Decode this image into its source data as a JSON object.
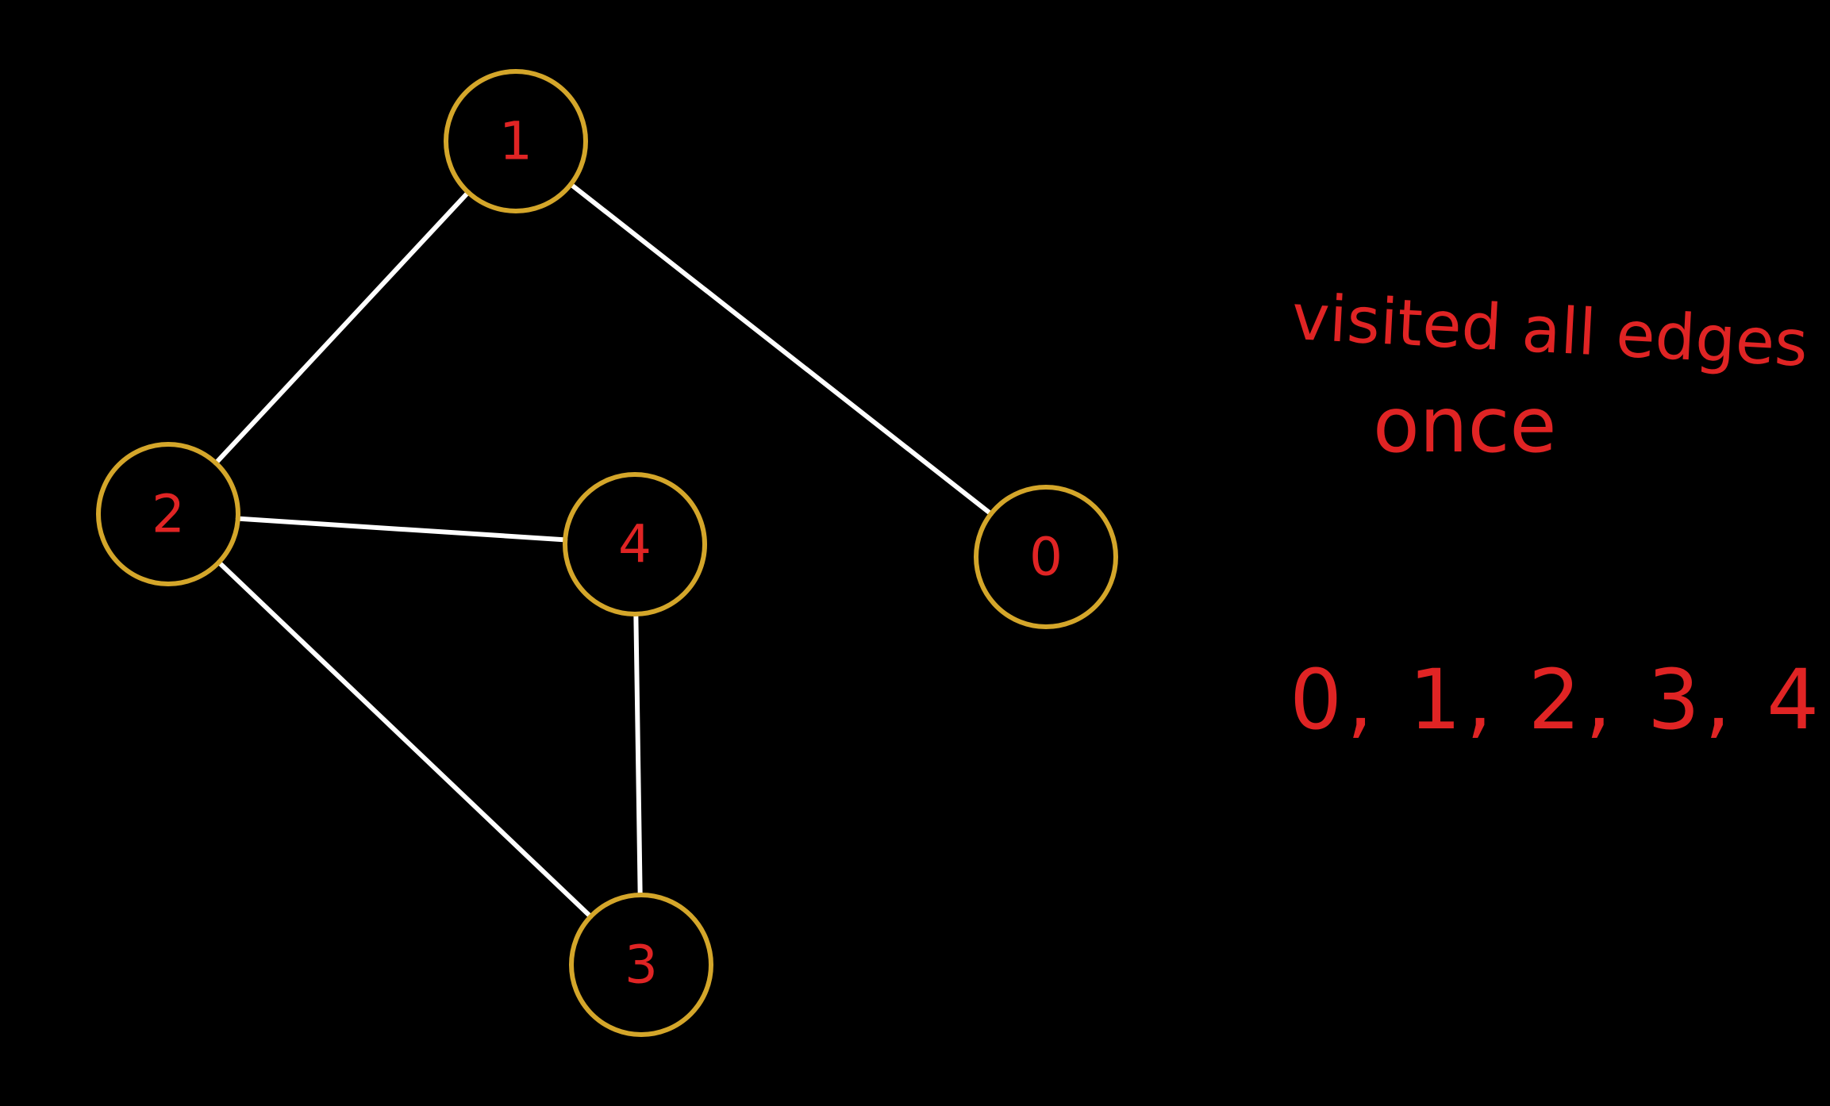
{
  "colors": {
    "background": "#000000",
    "node_border": "#d4a62a",
    "edge": "#ffffff",
    "ink": "#e02424"
  },
  "graph": {
    "nodes": [
      {
        "id": "0",
        "label": "0"
      },
      {
        "id": "1",
        "label": "1"
      },
      {
        "id": "2",
        "label": "2"
      },
      {
        "id": "3",
        "label": "3"
      },
      {
        "id": "4",
        "label": "4"
      }
    ],
    "edges": [
      {
        "from": "1",
        "to": "2"
      },
      {
        "from": "1",
        "to": "0"
      },
      {
        "from": "2",
        "to": "4"
      },
      {
        "from": "2",
        "to": "3"
      },
      {
        "from": "4",
        "to": "3"
      }
    ]
  },
  "notes": {
    "line1": "visited all edges",
    "line2": "once",
    "sequence": "0, 1,  2, 3, 4"
  }
}
